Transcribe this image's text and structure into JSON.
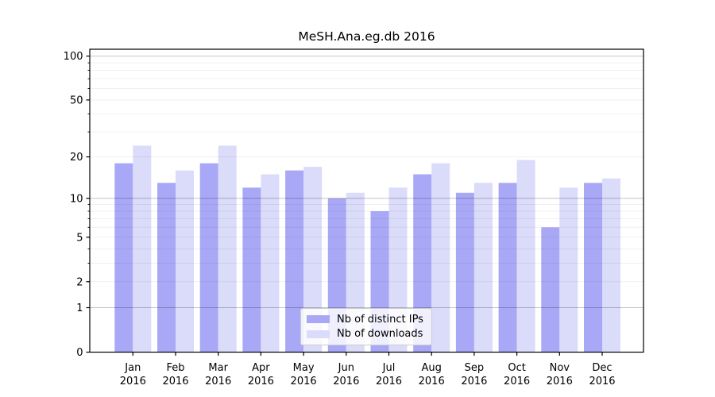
{
  "title": "MeSH.Ana.eg.db 2016",
  "chart_data": {
    "type": "bar",
    "title": "MeSH.Ana.eg.db 2016",
    "categories": [
      "Jan 2016",
      "Feb 2016",
      "Mar 2016",
      "Apr 2016",
      "May 2016",
      "Jun 2016",
      "Jul 2016",
      "Aug 2016",
      "Sep 2016",
      "Oct 2016",
      "Nov 2016",
      "Dec 2016"
    ],
    "series": [
      {
        "name": "Nb of distinct IPs",
        "color": "#a8a8f6",
        "values": [
          18,
          13,
          18,
          12,
          16,
          10,
          8,
          15,
          11,
          13,
          6,
          13
        ]
      },
      {
        "name": "Nb of downloads",
        "color": "#dbdbfa",
        "values": [
          24,
          16,
          24,
          15,
          17,
          11,
          12,
          18,
          13,
          19,
          12,
          14
        ]
      }
    ],
    "xlabel": "",
    "ylabel": "",
    "y_scale": "log1p",
    "ylim": [
      0,
      110
    ],
    "y_ticks": [
      0,
      1,
      2,
      5,
      10,
      20,
      50,
      100
    ],
    "grid": {
      "major": [
        1,
        10,
        100
      ],
      "minor": [
        2,
        3,
        4,
        5,
        6,
        7,
        8,
        9,
        20,
        30,
        40,
        50,
        60,
        70,
        80,
        90
      ]
    },
    "legend": {
      "position": "lower center",
      "items": [
        {
          "label": "Nb of distinct IPs",
          "color": "#a8a8f6"
        },
        {
          "label": "Nb of downloads",
          "color": "#dbdbfa"
        }
      ]
    }
  }
}
